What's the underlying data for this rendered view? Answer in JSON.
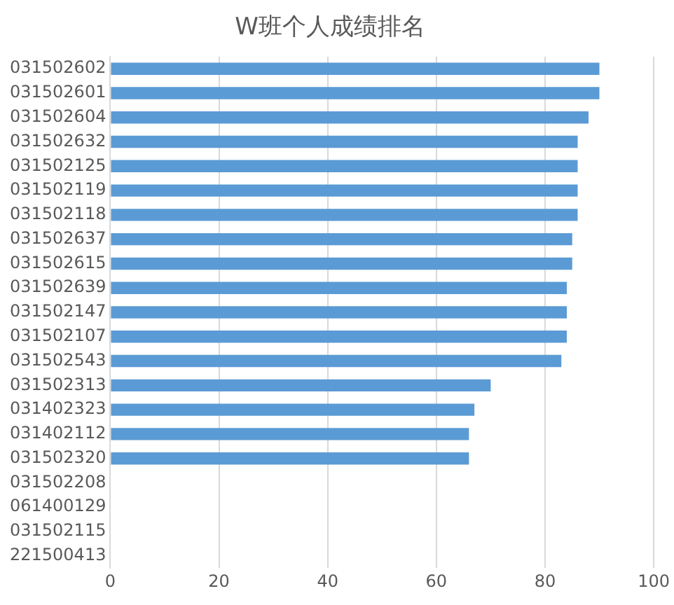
{
  "chart_data": {
    "type": "bar",
    "orientation": "horizontal",
    "title": "W班个人成绩排名",
    "categories": [
      "031502602",
      "031502601",
      "031502604",
      "031502632",
      "031502125",
      "031502119",
      "031502118",
      "031502637",
      "031502615",
      "031502639",
      "031502147",
      "031502107",
      "031502543",
      "031502313",
      "031402323",
      "031402112",
      "031502320",
      "031502208",
      "061400129",
      "031502115",
      "221500413"
    ],
    "values": [
      90,
      90,
      88,
      86,
      86,
      86,
      86,
      85,
      85,
      84,
      84,
      84,
      83,
      70,
      67,
      66,
      66,
      0,
      0,
      0,
      0
    ],
    "color": "#5b9bd5",
    "xlim": [
      0,
      100
    ],
    "xticks": [
      0,
      20,
      40,
      60,
      80,
      100
    ],
    "grid": "x",
    "legend": false
  }
}
